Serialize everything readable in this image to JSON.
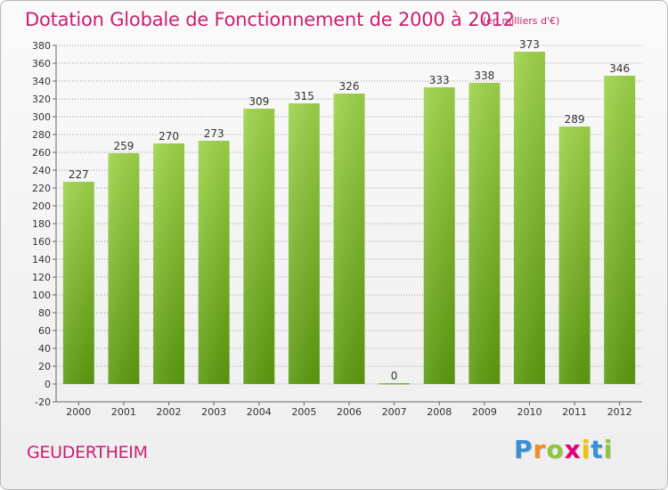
{
  "header": {
    "title": "Dotation Globale de Fonctionnement de 2000 à 2012",
    "unit": "(en milliers d'€)"
  },
  "footer": {
    "commune": "GEUDERTHEIM",
    "brand_letters": [
      "P",
      "r",
      "o",
      "x",
      "i",
      "t",
      "i"
    ]
  },
  "chart_data": {
    "type": "bar",
    "title": "Dotation Globale de Fonctionnement de 2000 à 2012",
    "subtitle": "(en milliers d'€)",
    "categories": [
      "2000",
      "2001",
      "2002",
      "2003",
      "2004",
      "2005",
      "2006",
      "2007",
      "2008",
      "2009",
      "2010",
      "2011",
      "2012"
    ],
    "values": [
      227,
      259,
      270,
      273,
      309,
      315,
      326,
      0,
      333,
      338,
      373,
      289,
      346
    ],
    "ylim": [
      -20,
      380
    ],
    "yticks": [
      -20,
      0,
      20,
      40,
      60,
      80,
      100,
      120,
      140,
      160,
      180,
      200,
      220,
      240,
      260,
      280,
      300,
      320,
      340,
      360,
      380
    ],
    "grid": "horizontal dotted",
    "colors": {
      "bar_top": "#9fd44a",
      "bar_bottom": "#5c9a0e",
      "title": "#cc1f6e",
      "grid": "#999999"
    }
  }
}
